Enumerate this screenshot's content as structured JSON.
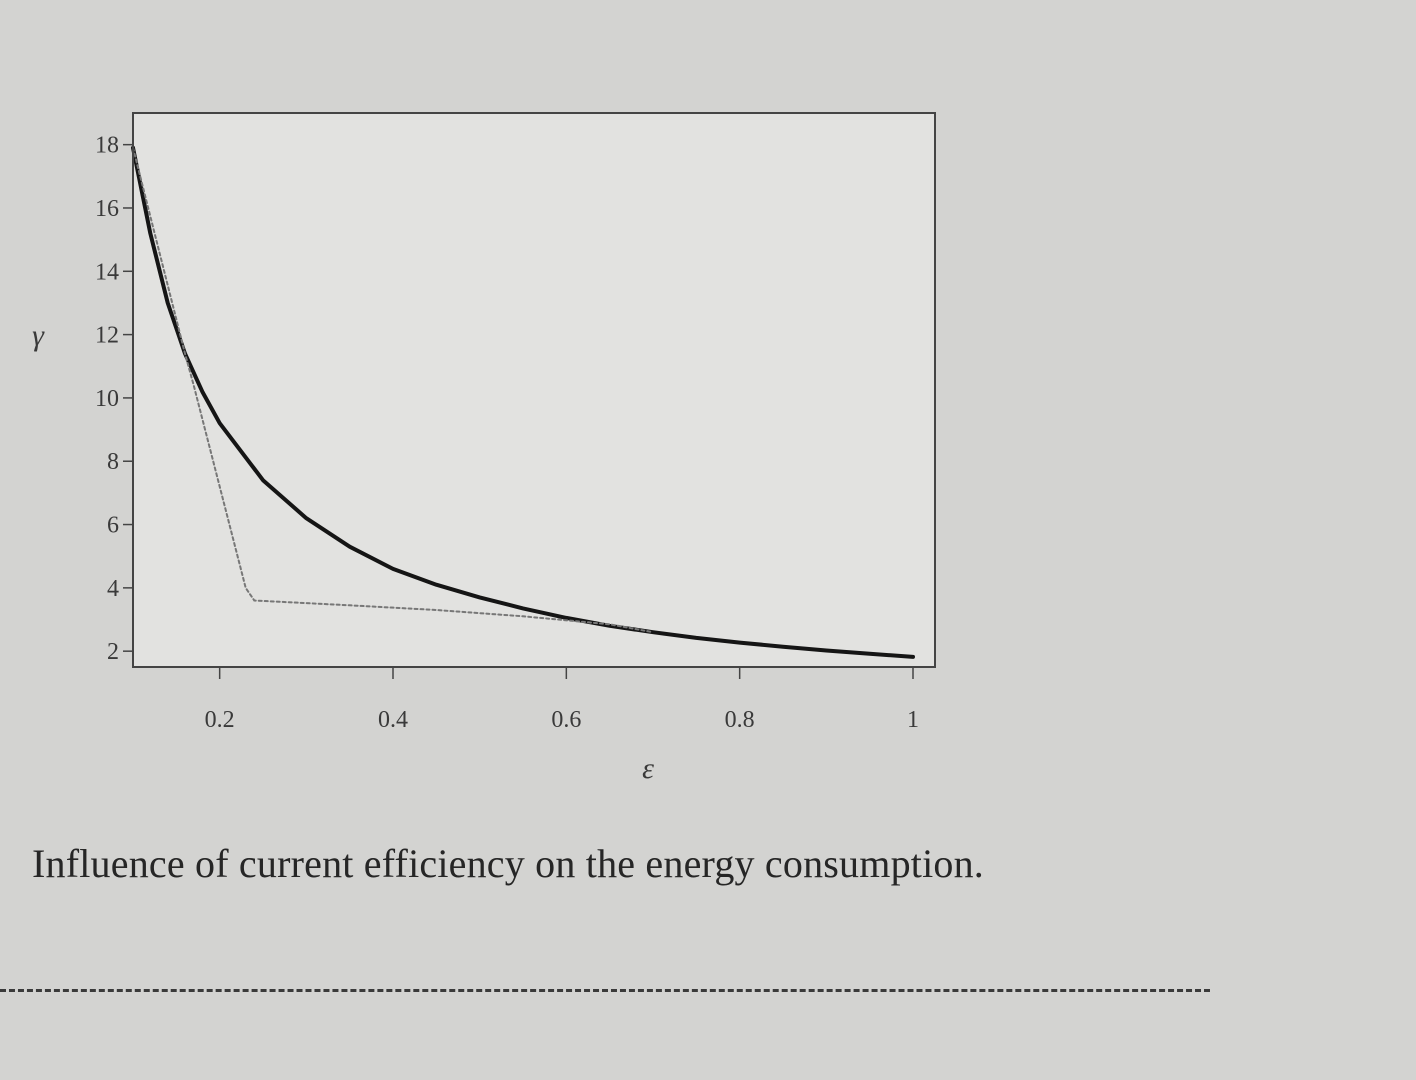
{
  "caption": "Influence of current efficiency on the energy consumption.",
  "colors": {
    "background": "#d3d3d1",
    "plot_background": "#e2e2e0",
    "frame": "#444444",
    "solid_curve": "#151515",
    "dotted_curve": "#777777",
    "text": "#3a3a3a"
  },
  "chart_data": {
    "type": "line",
    "title": "",
    "xlabel": "ε",
    "ylabel": "γ",
    "xlim": [
      0.1,
      1.0
    ],
    "ylim": [
      1.5,
      18.4
    ],
    "xticks": [
      0.2,
      0.4,
      0.6,
      0.8,
      1.0
    ],
    "xtick_labels": [
      "0.2",
      "0.4",
      "0.6",
      "0.8",
      "1"
    ],
    "yticks": [
      2,
      4,
      6,
      8,
      10,
      12,
      14,
      16,
      18
    ],
    "ytick_labels": [
      "2",
      "4",
      "6",
      "8",
      "10",
      "12",
      "14",
      "16",
      "18"
    ],
    "grid": false,
    "legend": "none",
    "series": [
      {
        "style": "solid",
        "x": [
          0.1,
          0.12,
          0.14,
          0.16,
          0.18,
          0.2,
          0.25,
          0.3,
          0.35,
          0.4,
          0.45,
          0.5,
          0.55,
          0.6,
          0.65,
          0.7,
          0.75,
          0.8,
          0.85,
          0.9,
          0.95,
          1.0
        ],
        "y": [
          17.9,
          15.2,
          13.0,
          11.4,
          10.2,
          9.2,
          7.4,
          6.2,
          5.3,
          4.6,
          4.1,
          3.7,
          3.35,
          3.05,
          2.8,
          2.6,
          2.42,
          2.27,
          2.14,
          2.02,
          1.92,
          1.82
        ]
      },
      {
        "style": "dotted",
        "x": [
          0.1,
          0.16,
          0.17,
          0.23,
          0.24,
          0.35,
          0.45,
          0.55,
          0.65,
          0.7
        ],
        "y": [
          17.9,
          11.4,
          10.4,
          4.0,
          3.6,
          3.45,
          3.3,
          3.1,
          2.85,
          2.6
        ]
      }
    ]
  }
}
